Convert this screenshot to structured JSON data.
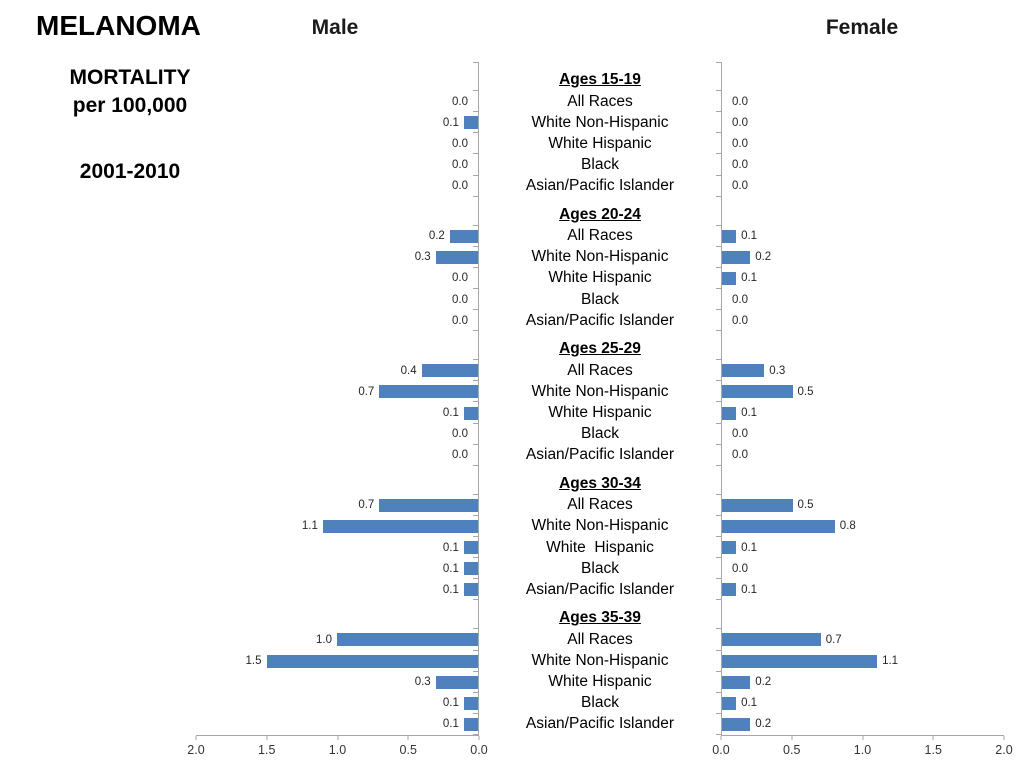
{
  "slide": {
    "title": "MELANOMA",
    "subtitle": [
      "MORTALITY",
      "per 100,000"
    ],
    "period": "2001-2010"
  },
  "chart_data": {
    "type": "bar",
    "layout": "population-pyramid-tornado",
    "title": "MELANOMA MORTALITY per 100,000, 2001-2010",
    "left_series": "Male",
    "right_series": "Female",
    "xlim": [
      0,
      2.0
    ],
    "x_ticks_male": [
      "2.0",
      "1.5",
      "1.0",
      "0.5",
      "0.0"
    ],
    "x_ticks_female": [
      "0.0",
      "0.5",
      "1.0",
      "1.5",
      "2.0"
    ],
    "bar_color": "#4f81bd",
    "axis_color": "#a6a6a6",
    "grid": false,
    "groups": [
      {
        "label": "Ages 15-19",
        "rows": [
          {
            "race": "All Races",
            "male": 0.0,
            "female": 0.0
          },
          {
            "race": "White Non-Hispanic",
            "male": 0.1,
            "female": 0.0
          },
          {
            "race": "White Hispanic",
            "male": 0.0,
            "female": 0.0
          },
          {
            "race": "Black",
            "male": 0.0,
            "female": 0.0
          },
          {
            "race": "Asian/Pacific Islander",
            "male": 0.0,
            "female": 0.0
          }
        ]
      },
      {
        "label": "Ages 20-24",
        "rows": [
          {
            "race": "All Races",
            "male": 0.2,
            "female": 0.1
          },
          {
            "race": "White Non-Hispanic",
            "male": 0.3,
            "female": 0.2
          },
          {
            "race": "White Hispanic",
            "male": 0.0,
            "female": 0.1
          },
          {
            "race": "Black",
            "male": 0.0,
            "female": 0.0
          },
          {
            "race": "Asian/Pacific Islander",
            "male": 0.0,
            "female": 0.0
          }
        ]
      },
      {
        "label": "Ages 25-29",
        "rows": [
          {
            "race": "All Races",
            "male": 0.4,
            "female": 0.3
          },
          {
            "race": "White Non-Hispanic",
            "male": 0.7,
            "female": 0.5
          },
          {
            "race": "White Hispanic",
            "male": 0.1,
            "female": 0.1
          },
          {
            "race": "Black",
            "male": 0.0,
            "female": 0.0
          },
          {
            "race": "Asian/Pacific Islander",
            "male": 0.0,
            "female": 0.0
          }
        ]
      },
      {
        "label": "Ages 30-34",
        "rows": [
          {
            "race": "All Races",
            "male": 0.7,
            "female": 0.5
          },
          {
            "race": "White Non-Hispanic",
            "male": 1.1,
            "female": 0.8
          },
          {
            "race": "White  Hispanic",
            "male": 0.1,
            "female": 0.1
          },
          {
            "race": "Black",
            "male": 0.1,
            "female": 0.0
          },
          {
            "race": "Asian/Pacific Islander",
            "male": 0.1,
            "female": 0.1
          }
        ]
      },
      {
        "label": "Ages 35-39",
        "rows": [
          {
            "race": "All Races",
            "male": 1.0,
            "female": 0.7
          },
          {
            "race": "White Non-Hispanic",
            "male": 1.5,
            "female": 1.1
          },
          {
            "race": "White Hispanic",
            "male": 0.3,
            "female": 0.2
          },
          {
            "race": "Black",
            "male": 0.1,
            "female": 0.1
          },
          {
            "race": "Asian/Pacific Islander",
            "male": 0.1,
            "female": 0.2
          }
        ]
      }
    ]
  }
}
